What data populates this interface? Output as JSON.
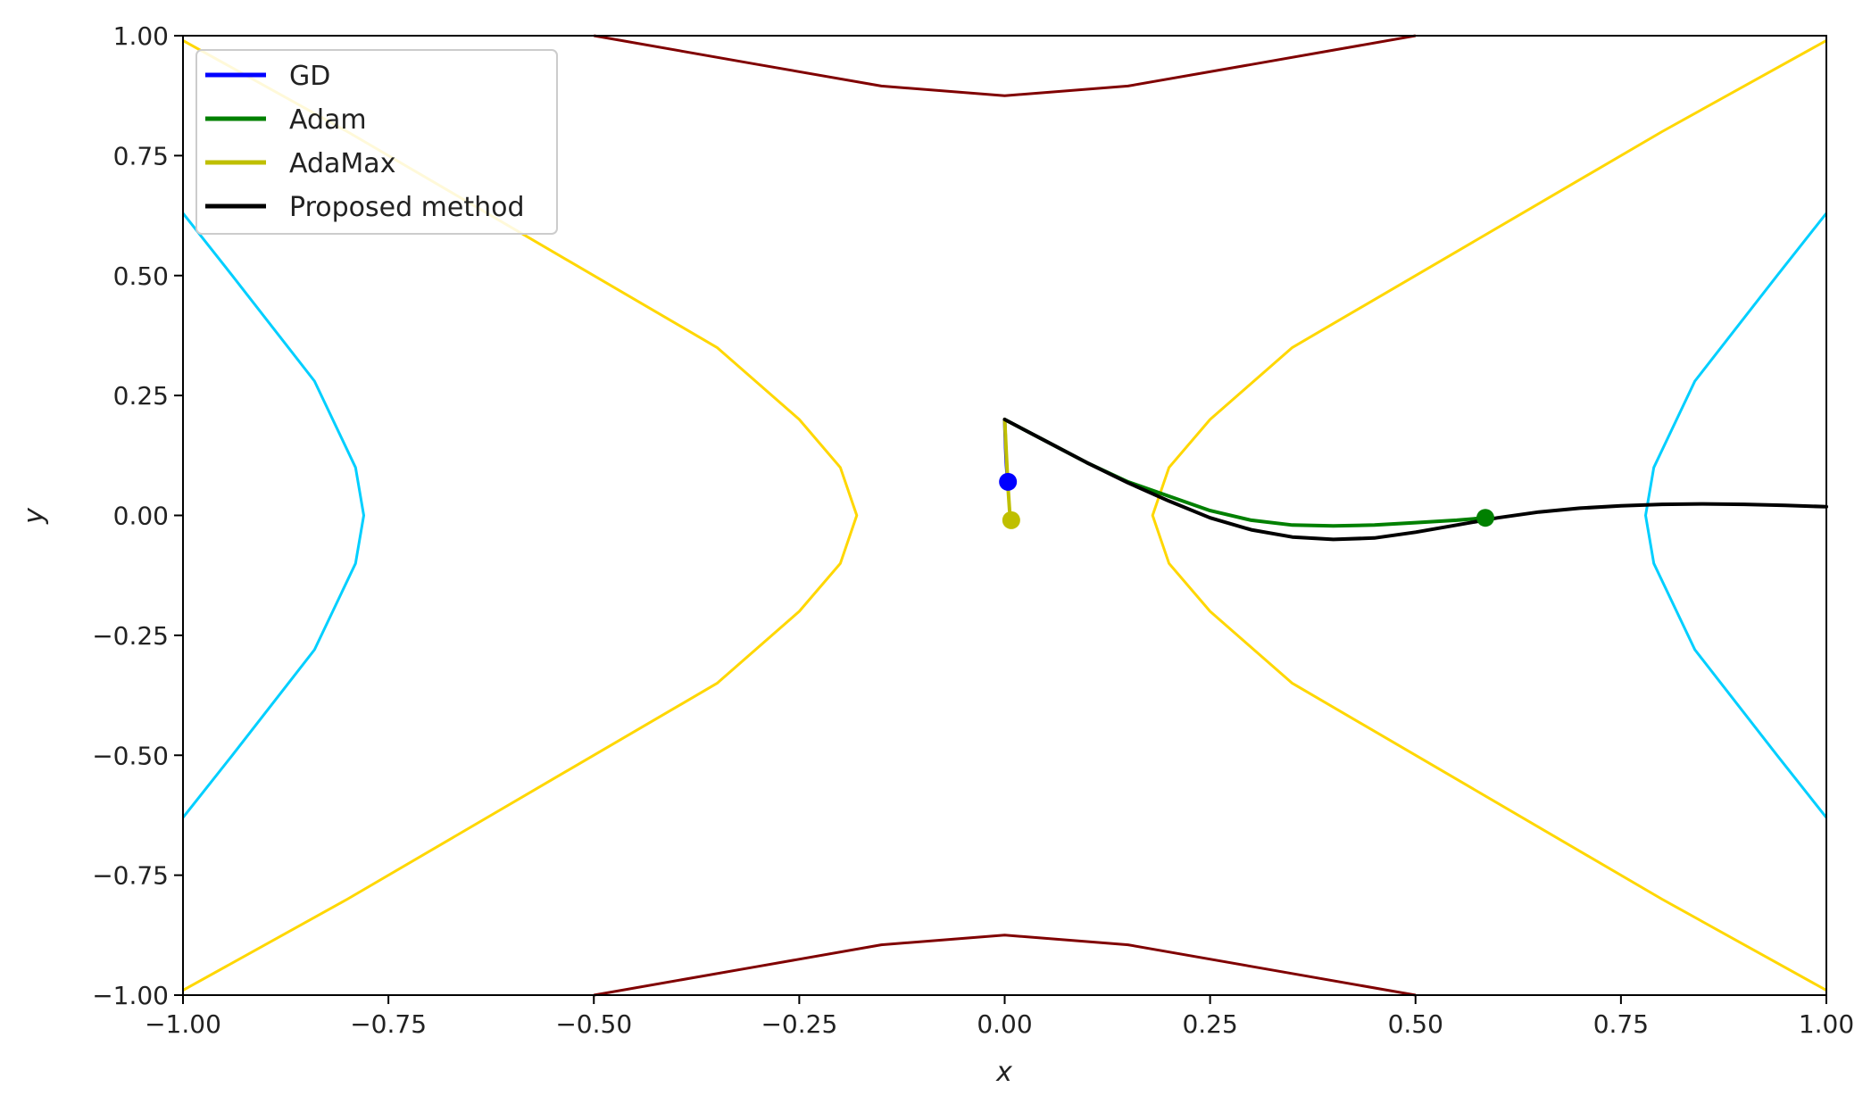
{
  "chart_data": {
    "type": "line",
    "title": "",
    "xlabel": "x",
    "ylabel": "y",
    "xlim": [
      -1.0,
      1.0
    ],
    "ylim": [
      -1.0,
      1.0
    ],
    "xticks": [
      "−1.00",
      "−0.75",
      "−0.50",
      "−0.25",
      "0.00",
      "0.25",
      "0.50",
      "0.75",
      "1.00"
    ],
    "yticks": [
      "1.00",
      "0.75",
      "0.50",
      "0.25",
      "0.00",
      "−0.25",
      "−0.50",
      "−0.75",
      "−1.00"
    ],
    "grid": false,
    "legend_position": "top-left",
    "contours": [
      {
        "color": "#00CFFF",
        "segments": [
          [
            [
              -1.0,
              0.63
            ],
            [
              -0.94,
              0.5
            ],
            [
              -0.84,
              0.28
            ],
            [
              -0.79,
              0.1
            ],
            [
              -0.78,
              0.0
            ],
            [
              -0.79,
              -0.1
            ],
            [
              -0.84,
              -0.28
            ],
            [
              -0.94,
              -0.5
            ],
            [
              -1.0,
              -0.63
            ]
          ],
          [
            [
              1.0,
              0.63
            ],
            [
              0.94,
              0.5
            ],
            [
              0.84,
              0.28
            ],
            [
              0.79,
              0.1
            ],
            [
              0.78,
              0.0
            ],
            [
              0.79,
              -0.1
            ],
            [
              0.84,
              -0.28
            ],
            [
              0.94,
              -0.5
            ],
            [
              1.0,
              -0.63
            ]
          ]
        ]
      },
      {
        "color": "#FFD700",
        "segments": [
          [
            [
              -1.0,
              0.99
            ],
            [
              -0.8,
              0.8
            ],
            [
              -0.55,
              0.55
            ],
            [
              -0.35,
              0.35
            ],
            [
              -0.25,
              0.2
            ],
            [
              -0.2,
              0.1
            ],
            [
              -0.18,
              0.0
            ],
            [
              -0.2,
              -0.1
            ],
            [
              -0.25,
              -0.2
            ],
            [
              -0.35,
              -0.35
            ],
            [
              -0.55,
              -0.55
            ],
            [
              -0.8,
              -0.8
            ],
            [
              -1.0,
              -0.99
            ]
          ],
          [
            [
              1.0,
              0.99
            ],
            [
              0.8,
              0.8
            ],
            [
              0.55,
              0.55
            ],
            [
              0.35,
              0.35
            ],
            [
              0.25,
              0.2
            ],
            [
              0.2,
              0.1
            ],
            [
              0.18,
              0.0
            ],
            [
              0.2,
              -0.1
            ],
            [
              0.25,
              -0.2
            ],
            [
              0.35,
              -0.35
            ],
            [
              0.55,
              -0.55
            ],
            [
              0.8,
              -0.8
            ],
            [
              1.0,
              -0.99
            ]
          ]
        ]
      },
      {
        "color": "#800000",
        "segments": [
          [
            [
              -0.5,
              1.0
            ],
            [
              -0.3,
              0.94
            ],
            [
              -0.15,
              0.895
            ],
            [
              0.0,
              0.875
            ],
            [
              0.15,
              0.895
            ],
            [
              0.3,
              0.94
            ],
            [
              0.5,
              1.0
            ]
          ],
          [
            [
              -0.5,
              -1.0
            ],
            [
              -0.3,
              -0.94
            ],
            [
              -0.15,
              -0.895
            ],
            [
              0.0,
              -0.875
            ],
            [
              0.15,
              -0.895
            ],
            [
              0.3,
              -0.94
            ],
            [
              0.5,
              -1.0
            ]
          ]
        ]
      }
    ],
    "series": [
      {
        "name": "GD",
        "color": "#0000FF",
        "x": [
          0.0,
          0.001,
          0.002,
          0.003,
          0.004
        ],
        "y": [
          0.2,
          0.15,
          0.11,
          0.085,
          0.07
        ],
        "marker": [
          0.004,
          0.07
        ]
      },
      {
        "name": "Adam",
        "color": "#008000",
        "x": [
          0.0,
          0.05,
          0.1,
          0.15,
          0.2,
          0.25,
          0.3,
          0.35,
          0.4,
          0.45,
          0.5,
          0.55,
          0.585
        ],
        "y": [
          0.2,
          0.155,
          0.11,
          0.07,
          0.04,
          0.01,
          -0.01,
          -0.02,
          -0.022,
          -0.02,
          -0.015,
          -0.01,
          -0.005
        ],
        "marker": [
          0.585,
          -0.005
        ]
      },
      {
        "name": "AdaMax",
        "color": "#BFBF00",
        "x": [
          0.0,
          0.002,
          0.004,
          0.006,
          0.008
        ],
        "y": [
          0.2,
          0.13,
          0.06,
          0.01,
          -0.01
        ],
        "marker": [
          0.008,
          -0.01
        ]
      },
      {
        "name": "Proposed method",
        "color": "#000000",
        "x": [
          0.0,
          0.05,
          0.1,
          0.15,
          0.2,
          0.25,
          0.3,
          0.35,
          0.4,
          0.45,
          0.5,
          0.55,
          0.6,
          0.65,
          0.7,
          0.75,
          0.8,
          0.85,
          0.9,
          0.95,
          1.0
        ],
        "y": [
          0.2,
          0.155,
          0.11,
          0.068,
          0.03,
          -0.005,
          -0.03,
          -0.045,
          -0.05,
          -0.047,
          -0.035,
          -0.02,
          -0.005,
          0.007,
          0.015,
          0.02,
          0.023,
          0.024,
          0.023,
          0.021,
          0.018
        ]
      }
    ]
  }
}
